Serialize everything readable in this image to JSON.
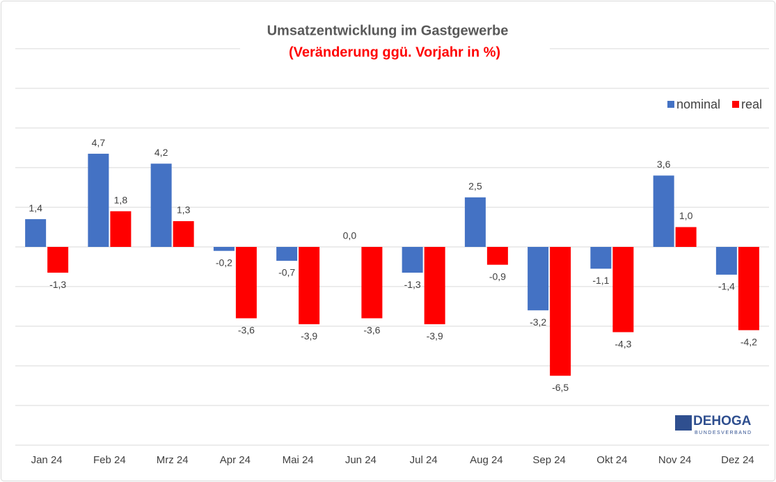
{
  "chart_data": {
    "type": "bar",
    "title": "Umsatzentwicklung im Gastgewerbe",
    "subtitle": "(Veränderung ggü. Vorjahr in %)",
    "categories": [
      "Jan 24",
      "Feb 24",
      "Mrz 24",
      "Apr 24",
      "Mai 24",
      "Jun 24",
      "Jul 24",
      "Aug 24",
      "Sep 24",
      "Okt 24",
      "Nov 24",
      "Dez 24"
    ],
    "series": [
      {
        "name": "nominal",
        "color": "#4472c4",
        "values": [
          1.4,
          4.7,
          4.2,
          -0.2,
          -0.7,
          0.0,
          -1.3,
          2.5,
          -3.2,
          -1.1,
          3.6,
          -1.4
        ],
        "value_labels": [
          "1,4",
          "4,7",
          "4,2",
          "-0,2",
          "-0,7",
          "0,0",
          "-1,3",
          "2,5",
          "-3,2",
          "-1,1",
          "3,6",
          "-1,4"
        ]
      },
      {
        "name": "real",
        "color": "#ff0000",
        "values": [
          -1.3,
          1.8,
          1.3,
          -3.6,
          -3.9,
          -3.6,
          -3.9,
          -0.9,
          -6.5,
          -4.3,
          1.0,
          -4.2
        ],
        "value_labels": [
          "-1,3",
          "1,8",
          "1,3",
          "-3,6",
          "-3,9",
          "-3,6",
          "-3,9",
          "-0,9",
          "-6,5",
          "-4,3",
          "1,0",
          "-4,2"
        ]
      }
    ],
    "ylim": [
      -10,
      10
    ],
    "yticks": [
      -10,
      -8,
      -6,
      -4,
      -2,
      0,
      2,
      4,
      6,
      8,
      10
    ],
    "grid": true,
    "legend": "top-right"
  },
  "logo": {
    "name": "DEHOGA",
    "sub": "BUNDESVERBAND"
  }
}
